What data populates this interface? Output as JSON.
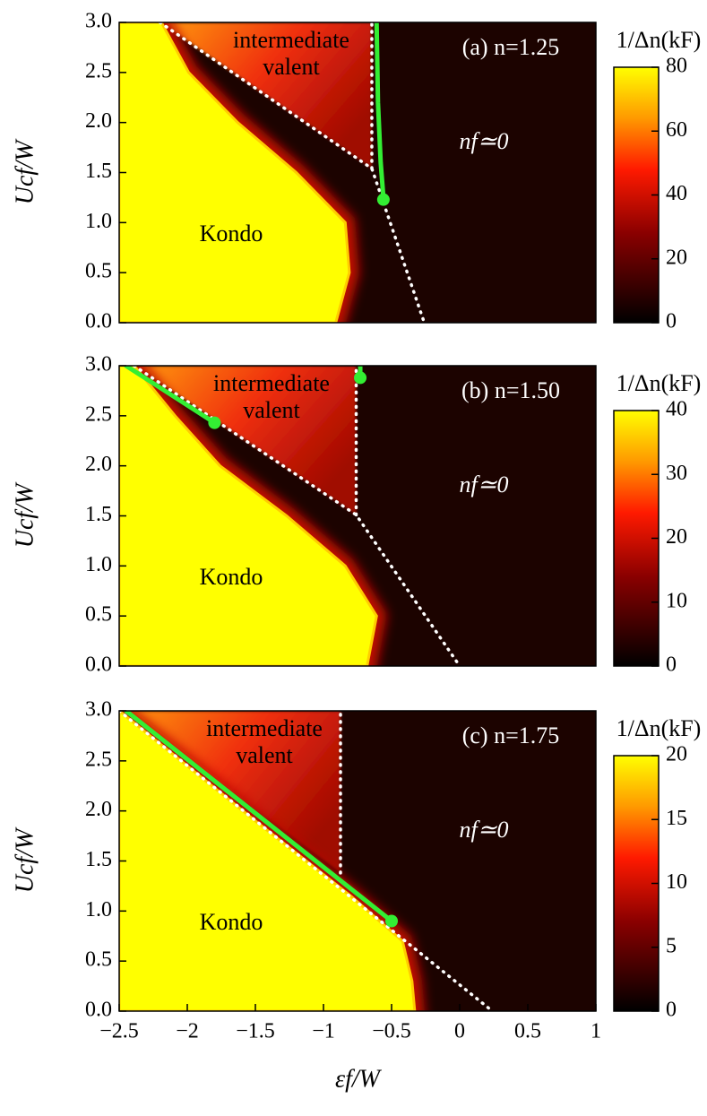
{
  "chart_data": [
    {
      "type": "heatmap",
      "annotation": "(a) n=1.25",
      "region_labels": {
        "intermediate": [
          "intermediate",
          "valent"
        ],
        "kondo": "Kondo",
        "empty": "nf≃0"
      },
      "ylabel": "Ucf/W",
      "xlim": [
        -2.5,
        1
      ],
      "ylim": [
        0,
        3
      ],
      "yticks": [
        {
          "value": 0,
          "label": "0.0"
        },
        {
          "value": 0.5,
          "label": "0.5"
        },
        {
          "value": 1,
          "label": "1.0"
        },
        {
          "value": 1.5,
          "label": "1.5"
        },
        {
          "value": 2,
          "label": "2.0"
        },
        {
          "value": 2.5,
          "label": "2.5"
        },
        {
          "value": 3,
          "label": "3.0"
        }
      ],
      "colorbar": {
        "title": "1/Δn(kF)",
        "lim": [
          0,
          80
        ],
        "ticks": [
          0,
          20,
          40,
          60,
          80
        ]
      },
      "kondo_edge": {
        "x": [
          -2.19,
          -1.99,
          -1.63,
          -1.2,
          -0.84,
          -0.81,
          -0.91
        ],
        "y": [
          3,
          2.5,
          2,
          1.5,
          1,
          0.5,
          0
        ]
      },
      "dotted": {
        "x": [
          -2.2,
          -0.645,
          -0.26
        ],
        "y": [
          3,
          1.54,
          0
        ]
      },
      "dotted_vertical": {
        "x": [
          -0.645,
          -0.645
        ],
        "y": [
          1.54,
          3
        ]
      },
      "green_lines": [
        {
          "x": [
            -0.61,
            -0.6,
            -0.58,
            -0.56
          ],
          "y": [
            3,
            2.2,
            1.6,
            1.25
          ]
        }
      ],
      "dots": {
        "x": [
          -0.56
        ],
        "y": [
          1.23
        ]
      }
    },
    {
      "type": "heatmap",
      "annotation": "(b) n=1.50",
      "region_labels": {
        "intermediate": [
          "intermediate",
          "valent"
        ],
        "kondo": "Kondo",
        "empty": "nf≃0"
      },
      "ylabel": "Ucf/W",
      "xlim": [
        -2.5,
        1
      ],
      "ylim": [
        0,
        3
      ],
      "yticks": [
        {
          "value": 0,
          "label": "0.0"
        },
        {
          "value": 0.5,
          "label": "0.5"
        },
        {
          "value": 1,
          "label": "1.0"
        },
        {
          "value": 1.5,
          "label": "1.5"
        },
        {
          "value": 2,
          "label": "2.0"
        },
        {
          "value": 2.5,
          "label": "2.5"
        },
        {
          "value": 3,
          "label": "3.0"
        }
      ],
      "colorbar": {
        "title": "1/Δn(kF)",
        "lim": [
          0,
          40
        ],
        "ticks": [
          0,
          10,
          20,
          30,
          40
        ]
      },
      "kondo_edge": {
        "x": [
          -2.39,
          -2.09,
          -1.76,
          -1.27,
          -0.84,
          -0.61,
          -0.68
        ],
        "y": [
          3,
          2.5,
          2,
          1.5,
          1,
          0.5,
          0
        ]
      },
      "dotted": {
        "x": [
          -2.39,
          -0.76,
          0
        ],
        "y": [
          3,
          1.51,
          0
        ]
      },
      "dotted_vertical": {
        "x": [
          -0.76,
          -0.76
        ],
        "y": [
          1.51,
          3
        ]
      },
      "green_lines": [
        {
          "x": [
            -2.45,
            -1.8
          ],
          "y": [
            3,
            2.43
          ]
        },
        {
          "x": [
            -0.73,
            -0.73
          ],
          "y": [
            3,
            2.88
          ]
        }
      ],
      "dots": {
        "x": [
          -1.8,
          -0.73
        ],
        "y": [
          2.43,
          2.88
        ]
      }
    },
    {
      "type": "heatmap",
      "annotation": "(c) n=1.75",
      "region_labels": {
        "intermediate": [
          "intermediate",
          "valent"
        ],
        "kondo": "Kondo",
        "empty": "nf≃0"
      },
      "ylabel": "Ucf/W",
      "xlabel": "εf/W",
      "xlim": [
        -2.5,
        1
      ],
      "ylim": [
        0,
        3
      ],
      "xticks": [
        {
          "value": -2.5,
          "label": "−2.5"
        },
        {
          "value": -2,
          "label": "−2"
        },
        {
          "value": -1.5,
          "label": "−1.5"
        },
        {
          "value": -1,
          "label": "−1"
        },
        {
          "value": -0.5,
          "label": "−0.5"
        },
        0,
        0.5,
        1
      ],
      "yticks": [
        {
          "value": 0,
          "label": "0.0"
        },
        {
          "value": 0.5,
          "label": "0.5"
        },
        {
          "value": 1,
          "label": "1.0"
        },
        {
          "value": 1.5,
          "label": "1.5"
        },
        {
          "value": 2,
          "label": "2.0"
        },
        {
          "value": 2.5,
          "label": "2.5"
        },
        {
          "value": 3,
          "label": "3.0"
        }
      ],
      "colorbar": {
        "title": "1/Δn(kF)",
        "lim": [
          0,
          20
        ],
        "ticks": [
          0,
          5,
          10,
          15,
          20
        ]
      },
      "kondo_edge": {
        "x": [
          -2.5,
          -1.5,
          -0.8,
          -0.42,
          -0.35,
          -0.33
        ],
        "y": [
          3,
          1.9,
          1.15,
          0.7,
          0.3,
          0
        ]
      },
      "dotted": {
        "x": [
          -2.5,
          0.24
        ],
        "y": [
          3,
          0
        ]
      },
      "dotted_vertical": {
        "x": [
          -0.875,
          -0.875
        ],
        "y": [
          1.38,
          3
        ]
      },
      "green_lines": [
        {
          "x": [
            -2.45,
            -0.5
          ],
          "y": [
            3,
            0.9
          ]
        }
      ],
      "dots": {
        "x": [
          -0.5
        ],
        "y": [
          0.9
        ]
      }
    }
  ]
}
